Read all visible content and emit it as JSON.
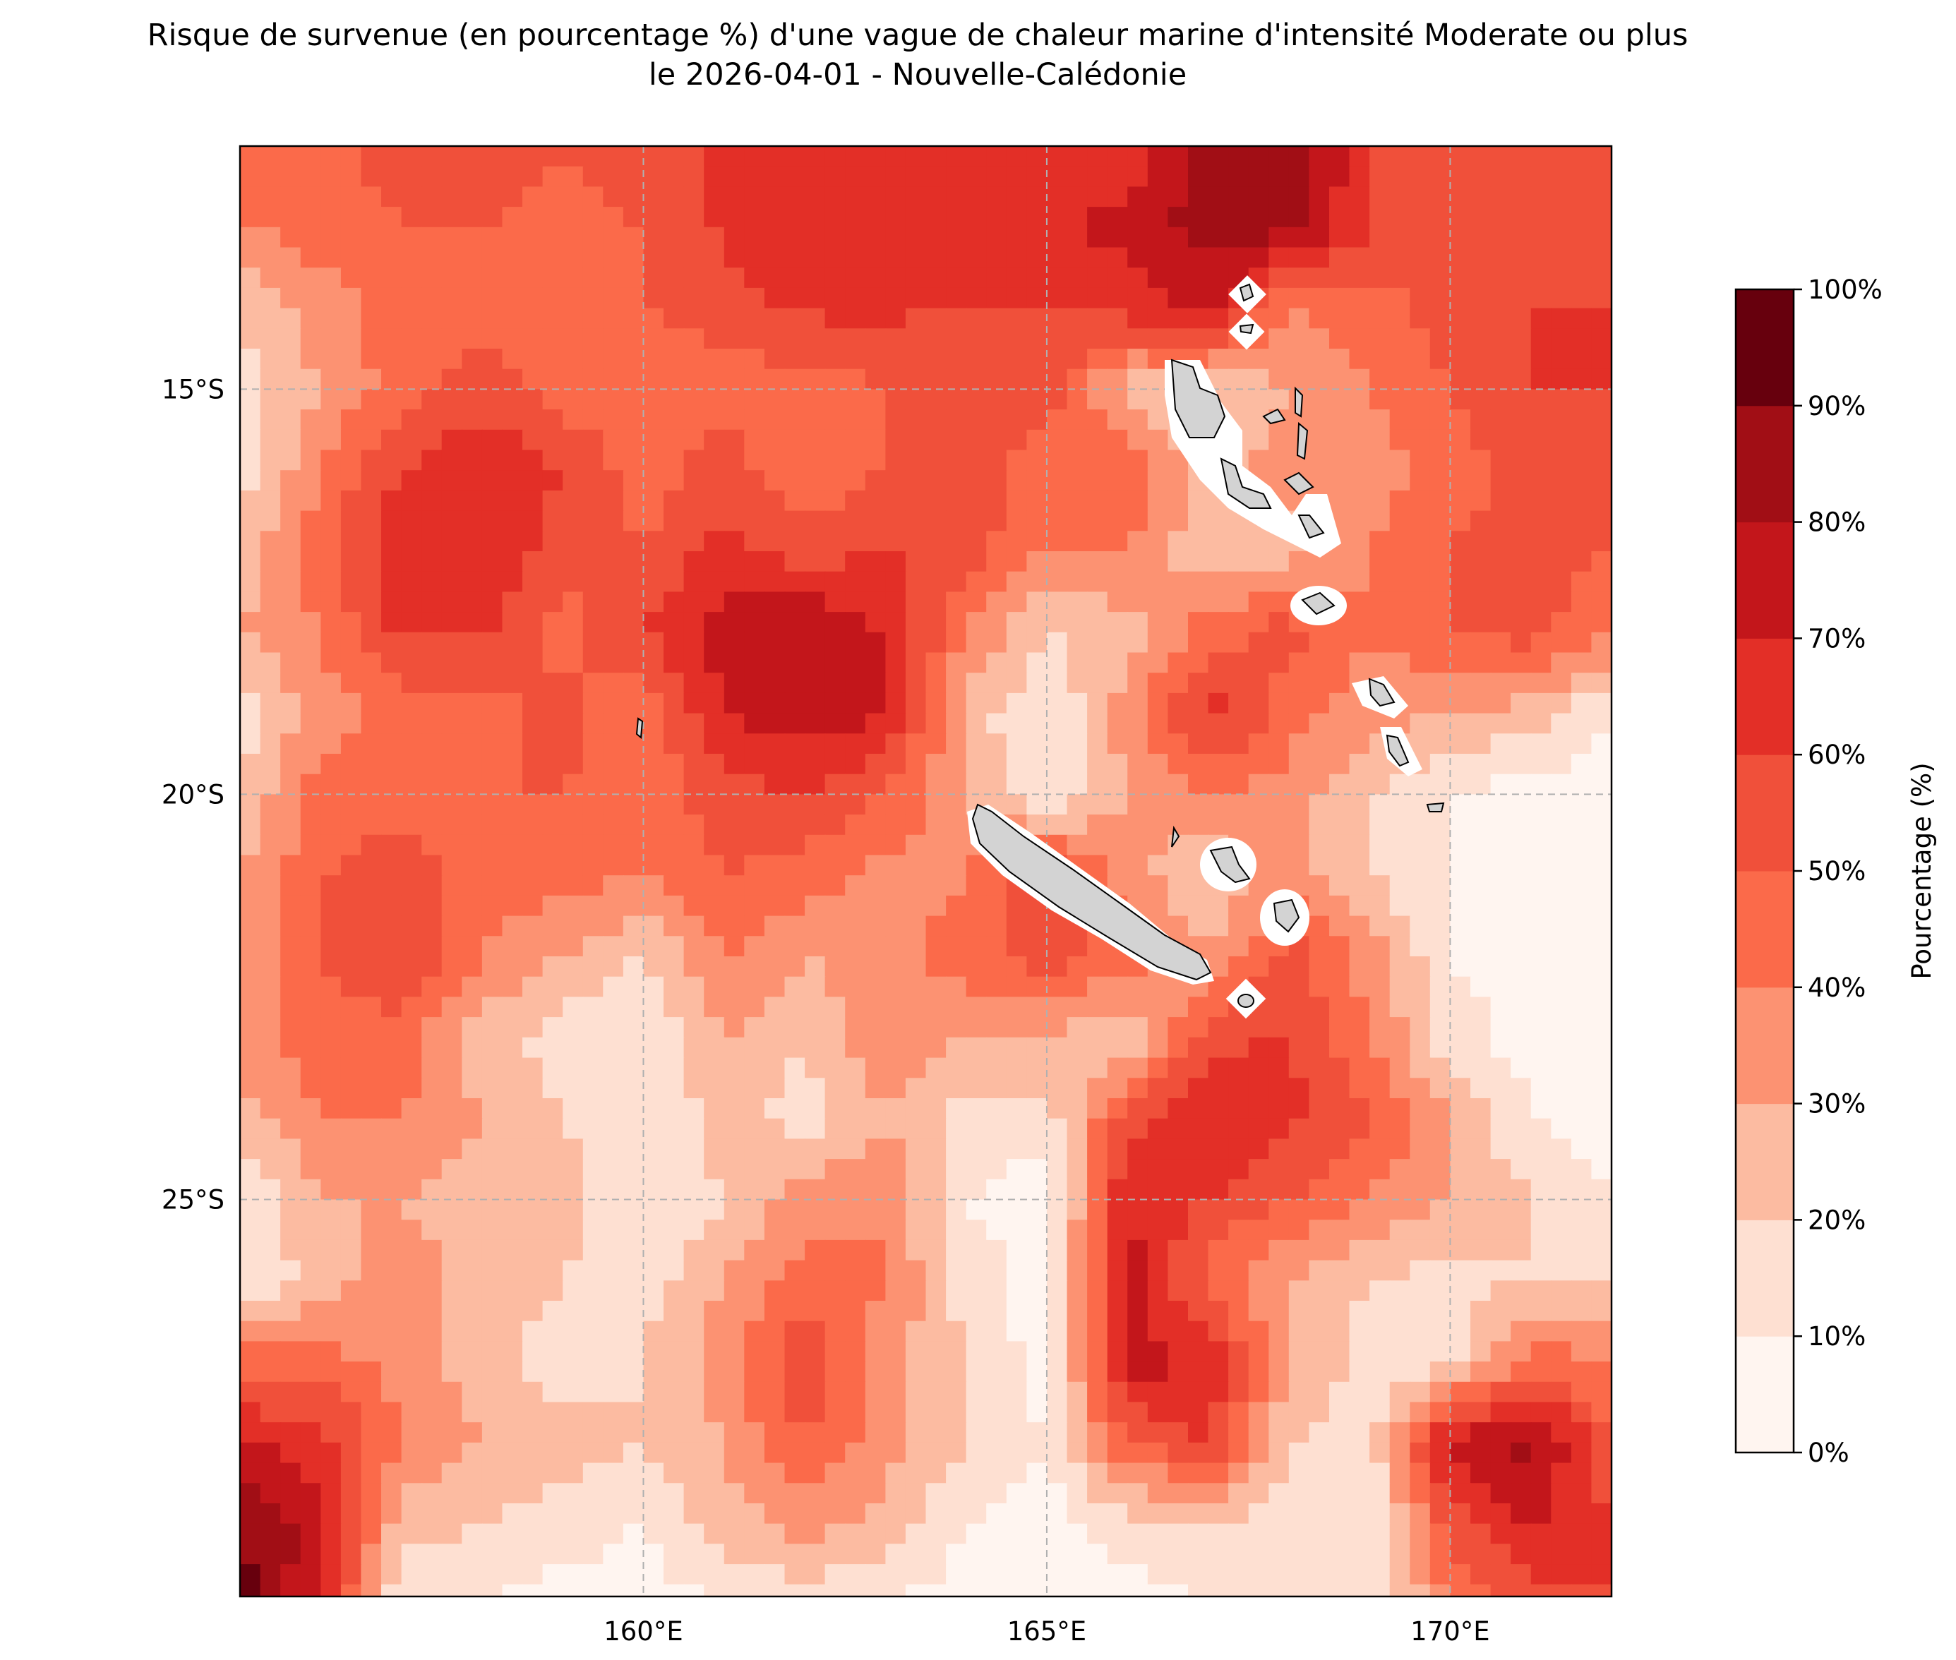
{
  "title": {
    "line1": "Risque de survenue (en pourcentage %) d'une vague de chaleur marine d'intensité Moderate ou plus",
    "line2": "le 2026-04-01 - Nouvelle-Calédonie"
  },
  "map": {
    "lon_range": [
      155,
      172
    ],
    "lat_range": [
      -29.9,
      -12.0
    ],
    "lon_ticks": [
      {
        "value": 160,
        "label": "160°E"
      },
      {
        "value": 165,
        "label": "165°E"
      },
      {
        "value": 170,
        "label": "170°E"
      }
    ],
    "lat_ticks": [
      {
        "value": -15,
        "label": "15°S"
      },
      {
        "value": -20,
        "label": "20°S"
      },
      {
        "value": -25,
        "label": "25°S"
      }
    ],
    "gridlines": true,
    "land_color": "#d3d3d3"
  },
  "colorbar": {
    "label": "Pourcentage (%)",
    "levels": [
      0,
      10,
      20,
      30,
      40,
      50,
      60,
      70,
      80,
      90,
      100
    ],
    "tick_labels": [
      "0%",
      "10%",
      "20%",
      "30%",
      "40%",
      "50%",
      "60%",
      "70%",
      "80%",
      "90%",
      "100%"
    ],
    "colors": [
      "#fff5f0",
      "#fee0d2",
      "#fcbba1",
      "#fc9272",
      "#fb6a4a",
      "#f0503a",
      "#e32f27",
      "#c3161b",
      "#a10e15",
      "#67000d"
    ]
  },
  "chart_data": {
    "type": "heatmap",
    "x": [
      155,
      156,
      157,
      158,
      159,
      160,
      161,
      162,
      163,
      164,
      165,
      166,
      167,
      168,
      169,
      170,
      171,
      172
    ],
    "y": [
      -12,
      -13,
      -14,
      -15,
      -16,
      -17,
      -18,
      -19,
      -20,
      -21,
      -22,
      -23,
      -24,
      -25,
      -26,
      -27,
      -28,
      -29,
      -30
    ],
    "z": [
      [
        45,
        45,
        55,
        55,
        50,
        55,
        62,
        66,
        66,
        66,
        64,
        62,
        82,
        88,
        60,
        55,
        55,
        55
      ],
      [
        40,
        45,
        50,
        50,
        45,
        50,
        62,
        68,
        66,
        64,
        66,
        75,
        85,
        85,
        60,
        55,
        55,
        55
      ],
      [
        20,
        35,
        45,
        45,
        40,
        50,
        56,
        62,
        62,
        60,
        60,
        64,
        75,
        40,
        45,
        55,
        60,
        60
      ],
      [
        15,
        30,
        45,
        55,
        45,
        40,
        45,
        45,
        50,
        52,
        55,
        25,
        20,
        30,
        40,
        50,
        60,
        60
      ],
      [
        15,
        40,
        60,
        70,
        60,
        45,
        55,
        40,
        50,
        55,
        45,
        50,
        25,
        35,
        35,
        45,
        55,
        55
      ],
      [
        25,
        45,
        70,
        70,
        55,
        50,
        65,
        55,
        60,
        55,
        40,
        40,
        20,
        25,
        40,
        50,
        55,
        50
      ],
      [
        30,
        40,
        62,
        62,
        45,
        60,
        75,
        80,
        70,
        40,
        20,
        25,
        45,
        55,
        40,
        50,
        55,
        40
      ],
      [
        15,
        35,
        45,
        45,
        55,
        40,
        70,
        75,
        72,
        25,
        10,
        35,
        65,
        45,
        35,
        30,
        25,
        10
      ],
      [
        20,
        45,
        45,
        50,
        50,
        45,
        55,
        60,
        50,
        30,
        10,
        30,
        40,
        35,
        20,
        10,
        5,
        5
      ],
      [
        30,
        50,
        55,
        45,
        45,
        40,
        50,
        45,
        35,
        40,
        60,
        35,
        20,
        35,
        20,
        10,
        5,
        5
      ],
      [
        30,
        50,
        60,
        40,
        30,
        20,
        40,
        30,
        35,
        45,
        55,
        45,
        30,
        55,
        35,
        10,
        5,
        5
      ],
      [
        35,
        45,
        45,
        25,
        15,
        10,
        30,
        20,
        40,
        30,
        30,
        20,
        55,
        62,
        40,
        15,
        5,
        5
      ],
      [
        25,
        40,
        40,
        30,
        20,
        10,
        25,
        15,
        30,
        15,
        15,
        55,
        70,
        62,
        50,
        30,
        10,
        5
      ],
      [
        10,
        30,
        30,
        25,
        25,
        10,
        20,
        35,
        40,
        10,
        5,
        70,
        60,
        50,
        40,
        30,
        20,
        10
      ],
      [
        10,
        25,
        35,
        25,
        20,
        15,
        30,
        45,
        40,
        15,
        5,
        75,
        45,
        30,
        20,
        15,
        20,
        20
      ],
      [
        45,
        45,
        35,
        25,
        15,
        20,
        35,
        60,
        35,
        20,
        5,
        75,
        70,
        30,
        15,
        15,
        45,
        40
      ],
      [
        70,
        65,
        40,
        30,
        25,
        20,
        30,
        50,
        35,
        20,
        10,
        50,
        60,
        20,
        15,
        75,
        85,
        50
      ],
      [
        90,
        75,
        25,
        20,
        15,
        10,
        25,
        35,
        25,
        10,
        5,
        15,
        20,
        15,
        10,
        55,
        70,
        60
      ],
      [
        95,
        70,
        10,
        10,
        5,
        5,
        10,
        15,
        10,
        5,
        5,
        5,
        10,
        10,
        10,
        40,
        55,
        60
      ]
    ],
    "land_masks": [
      "Grande Terre",
      "Iles Loyaute",
      "Vanuatu",
      "Ile des Pins"
    ]
  }
}
